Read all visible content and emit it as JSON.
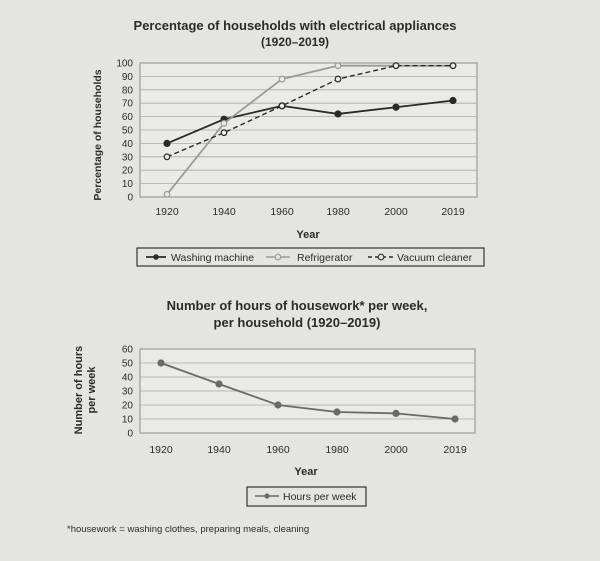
{
  "chart_data": [
    {
      "type": "line",
      "title": "Percentage of households with electrical appliances",
      "subtitle": "(1920–2019)",
      "xlabel": "Year",
      "ylabel": "Percentage of households",
      "categories": [
        "1920",
        "1940",
        "1960",
        "1980",
        "2000",
        "2019"
      ],
      "ylim": [
        0,
        100
      ],
      "yticks": [
        0,
        10,
        20,
        30,
        40,
        50,
        60,
        70,
        80,
        90,
        100
      ],
      "grid": true,
      "legend": "bottom",
      "series": [
        {
          "name": "Washing machine",
          "values": [
            40,
            58,
            68,
            62,
            67,
            72
          ],
          "color": "#2a2a2a",
          "style": "solid-filled"
        },
        {
          "name": "Refrigerator",
          "values": [
            2,
            55,
            88,
            98,
            98,
            98
          ],
          "color": "#9a9a9a",
          "style": "solid-open"
        },
        {
          "name": "Vacuum cleaner",
          "values": [
            30,
            48,
            68,
            88,
            98,
            98
          ],
          "color": "#2a2a2a",
          "style": "dashed-open"
        }
      ]
    },
    {
      "type": "line",
      "title": "Number of hours of housework* per week,",
      "subtitle": "per household (1920–2019)",
      "xlabel": "Year",
      "ylabel": "Number of hours per week",
      "categories": [
        "1920",
        "1940",
        "1960",
        "1980",
        "2000",
        "2019"
      ],
      "ylim": [
        0,
        60
      ],
      "yticks": [
        0,
        10,
        20,
        30,
        40,
        50,
        60
      ],
      "grid": true,
      "legend": "bottom",
      "series": [
        {
          "name": "Hours per week",
          "values": [
            50,
            35,
            20,
            15,
            14,
            10
          ],
          "color": "#6a6a6a",
          "style": "solid-filled"
        }
      ]
    }
  ],
  "footnote": "*housework = washing clothes, preparing meals, cleaning"
}
